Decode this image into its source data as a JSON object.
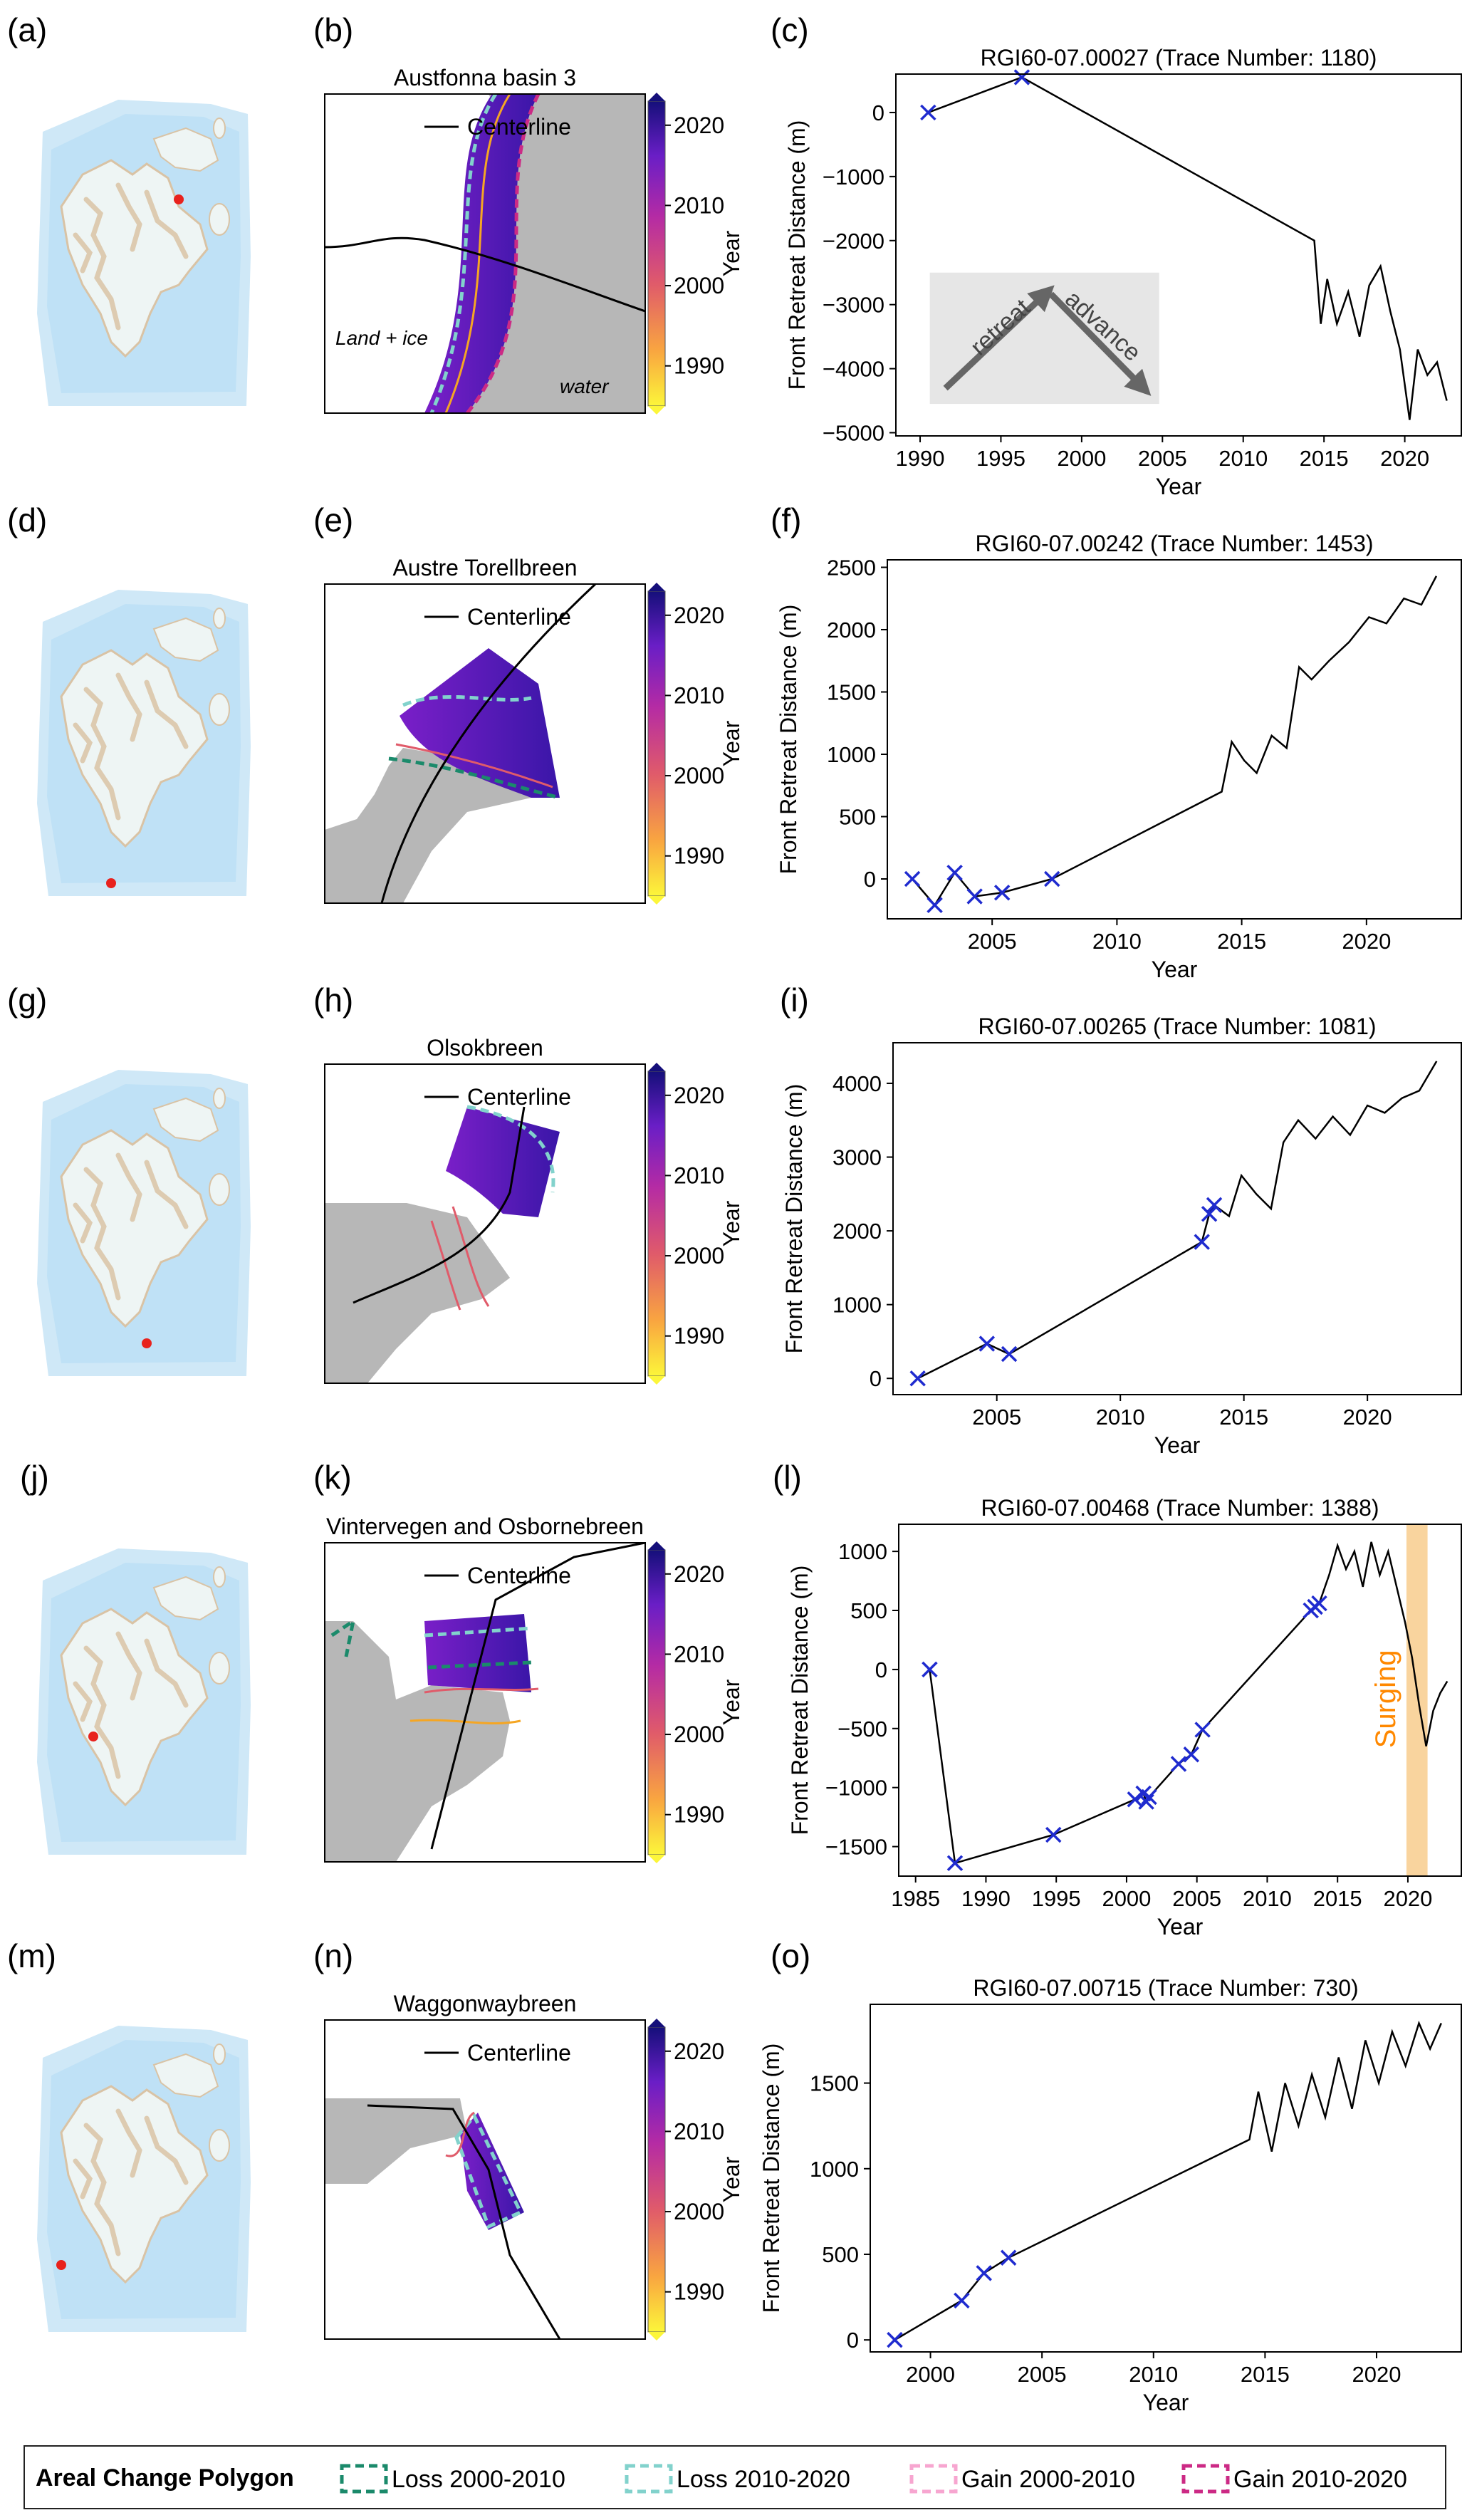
{
  "colors": {
    "ocean": "#cfe8f7",
    "ocean_outline": "#b8dcf2",
    "land_ice": "#eef5f4",
    "land_rock": "#d9c3a5",
    "marker": "#e8221d",
    "land_mask": "#b7b7b7",
    "cross": "#1f2bcf",
    "surge": "#f9d49e",
    "surge_text": "#ff8800",
    "loss_2000_2010": "#1b8a6b",
    "loss_2010_2020": "#82d2cc",
    "gain_2000_2010": "#f7a6d0",
    "gain_2010_2020": "#cc2a85"
  },
  "colorbar": {
    "label": "Year",
    "ticks": [
      "1990",
      "2000",
      "2010",
      "2020"
    ]
  },
  "legend": {
    "title": "Areal Change Polygon",
    "items": [
      "Loss 2000-2010",
      "Loss 2010-2020",
      "Gain 2000-2010",
      "Gain 2010-2020"
    ]
  },
  "rows": [
    {
      "labels": {
        "map": "(a)",
        "front": "(b)",
        "chart": "(c)"
      },
      "front_title": "Austfonna basin 3",
      "legend_line": "Centerline",
      "annotations": [
        "Land + ice",
        "water"
      ],
      "inset": {
        "left": "retreat",
        "right": "advance"
      }
    },
    {
      "labels": {
        "map": "(d)",
        "front": "(e)",
        "chart": "(f)"
      },
      "front_title": "Austre Torellbreen",
      "legend_line": "Centerline"
    },
    {
      "labels": {
        "map": "(g)",
        "front": "(h)",
        "chart": "(i)"
      },
      "front_title": "Olsokbreen",
      "legend_line": "Centerline"
    },
    {
      "labels": {
        "map": "(j)",
        "front": "(k)",
        "chart": "(l)"
      },
      "front_title": "Vintervegen and Osbornebreen",
      "legend_line": "Centerline",
      "surge_label": "Surging"
    },
    {
      "labels": {
        "map": "(m)",
        "front": "(n)",
        "chart": "(o)"
      },
      "front_title": "Waggonwaybreen",
      "legend_line": "Centerline"
    }
  ],
  "chart_data": [
    {
      "type": "line",
      "title": "RGI60-07.00027 (Trace Number: 1180)",
      "xlabel": "Year",
      "ylabel": "Front Retreat Distance (m)",
      "xlim": [
        1988.5,
        2023.5
      ],
      "ylim": [
        -5050,
        600
      ],
      "xticks": [
        1990,
        1995,
        2000,
        2005,
        2010,
        2015,
        2020
      ],
      "yticks": [
        0,
        -1000,
        -2000,
        -3000,
        -4000,
        -5000
      ],
      "markers": {
        "x": [
          1990.5,
          1996.3
        ],
        "y": [
          0,
          550
        ]
      },
      "line": {
        "x": [
          1990.5,
          1996.3,
          2014.4,
          2014.8,
          2015.2,
          2015.8,
          2016.5,
          2017.2,
          2017.8,
          2018.5,
          2019.1,
          2019.7,
          2020.3,
          2020.8,
          2021.4,
          2022.0,
          2022.6
        ],
        "y": [
          0,
          550,
          -2000,
          -3300,
          -2600,
          -3300,
          -2800,
          -3500,
          -2700,
          -2400,
          -3100,
          -3700,
          -4800,
          -3700,
          -4100,
          -3900,
          -4500
        ]
      }
    },
    {
      "type": "line",
      "title": "RGI60-07.00242 (Trace Number: 1453)",
      "xlabel": "Year",
      "ylabel": "Front Retreat Distance (m)",
      "xlim": [
        2000.8,
        2023.8
      ],
      "ylim": [
        -320,
        2560
      ],
      "xticks": [
        2005,
        2010,
        2015,
        2020
      ],
      "yticks": [
        0,
        500,
        1000,
        1500,
        2000,
        2500
      ],
      "markers": {
        "x": [
          2001.8,
          2002.7,
          2003.5,
          2004.3,
          2005.4,
          2007.4
        ],
        "y": [
          0,
          -210,
          50,
          -140,
          -110,
          0
        ]
      },
      "line": {
        "x": [
          2001.8,
          2002.7,
          2003.5,
          2004.3,
          2005.4,
          2007.4,
          2014.2,
          2014.6,
          2015.1,
          2015.6,
          2016.2,
          2016.8,
          2017.3,
          2017.8,
          2018.5,
          2019.3,
          2020.1,
          2020.8,
          2021.5,
          2022.2,
          2022.8
        ],
        "y": [
          0,
          -210,
          50,
          -140,
          -110,
          0,
          700,
          1100,
          950,
          850,
          1150,
          1050,
          1700,
          1600,
          1750,
          1900,
          2100,
          2050,
          2250,
          2200,
          2430
        ]
      }
    },
    {
      "type": "line",
      "title": "RGI60-07.00265 (Trace Number: 1081)",
      "xlabel": "Year",
      "ylabel": "Front Retreat Distance (m)",
      "xlim": [
        2000.8,
        2023.8
      ],
      "ylim": [
        -220,
        4550
      ],
      "xticks": [
        2005,
        2010,
        2015,
        2020
      ],
      "yticks": [
        0,
        1000,
        2000,
        3000,
        4000
      ],
      "markers": {
        "x": [
          2001.8,
          2004.6,
          2005.5,
          2013.3,
          2013.6,
          2013.8
        ],
        "y": [
          0,
          470,
          330,
          1850,
          2230,
          2350
        ]
      },
      "line": {
        "x": [
          2001.8,
          2004.6,
          2005.5,
          2013.3,
          2013.6,
          2013.8,
          2014.4,
          2014.9,
          2015.5,
          2016.1,
          2016.6,
          2017.2,
          2017.9,
          2018.6,
          2019.3,
          2020.0,
          2020.7,
          2021.4,
          2022.1,
          2022.8
        ],
        "y": [
          0,
          470,
          330,
          1850,
          2230,
          2350,
          2200,
          2750,
          2500,
          2300,
          3200,
          3500,
          3250,
          3550,
          3300,
          3700,
          3600,
          3800,
          3900,
          4300
        ]
      }
    },
    {
      "type": "line",
      "title": "RGI60-07.00468 (Trace Number: 1388)",
      "xlabel": "Year",
      "ylabel": "Front Retreat Distance (m)",
      "xlim": [
        1983.8,
        2023.8
      ],
      "ylim": [
        -1750,
        1230
      ],
      "xticks": [
        1985,
        1990,
        1995,
        2000,
        2005,
        2010,
        2015,
        2020
      ],
      "yticks": [
        1000,
        500,
        0,
        -500,
        -1000,
        -1500
      ],
      "surge_span": [
        2019.9,
        2021.4
      ],
      "markers": {
        "x": [
          1986.0,
          1987.8,
          1994.8,
          2000.6,
          2001.2,
          2001.4,
          2001.6,
          2003.7,
          2004.6,
          2005.4,
          2013.1,
          2013.4,
          2013.7
        ],
        "y": [
          0,
          -1640,
          -1400,
          -1100,
          -1050,
          -1120,
          -1080,
          -800,
          -720,
          -510,
          500,
          530,
          560
        ]
      },
      "line": {
        "x": [
          1986.0,
          1987.8,
          1994.8,
          2000.6,
          2001.2,
          2001.4,
          2001.6,
          2003.7,
          2004.6,
          2005.4,
          2013.1,
          2013.4,
          2013.7,
          2014.4,
          2015.0,
          2015.6,
          2016.2,
          2016.8,
          2017.4,
          2018.0,
          2018.6,
          2019.2,
          2019.8,
          2020.3,
          2020.8,
          2021.3,
          2021.8,
          2022.3,
          2022.8
        ],
        "y": [
          0,
          -1640,
          -1400,
          -1100,
          -1050,
          -1120,
          -1080,
          -800,
          -720,
          -510,
          500,
          530,
          560,
          800,
          1050,
          850,
          1000,
          700,
          1080,
          800,
          1000,
          700,
          400,
          100,
          -300,
          -650,
          -350,
          -200,
          -100
        ]
      }
    },
    {
      "type": "line",
      "title": "RGI60-07.00715 (Trace Number: 730)",
      "xlabel": "Year",
      "ylabel": "Front Retreat Distance (m)",
      "xlim": [
        1997.3,
        2023.8
      ],
      "ylim": [
        -70,
        1960
      ],
      "xticks": [
        2000,
        2005,
        2010,
        2015,
        2020
      ],
      "yticks": [
        0,
        500,
        1000,
        1500
      ],
      "markers": {
        "x": [
          1998.4,
          2001.4,
          2002.4,
          2003.5
        ],
        "y": [
          0,
          230,
          390,
          480
        ]
      },
      "line": {
        "x": [
          1998.4,
          2001.4,
          2002.4,
          2003.5,
          2014.3,
          2014.7,
          2015.3,
          2015.9,
          2016.5,
          2017.1,
          2017.7,
          2018.3,
          2018.9,
          2019.5,
          2020.1,
          2020.7,
          2021.3,
          2021.9,
          2022.4,
          2022.9
        ],
        "y": [
          0,
          230,
          390,
          480,
          1170,
          1450,
          1100,
          1500,
          1250,
          1550,
          1300,
          1650,
          1350,
          1750,
          1500,
          1800,
          1600,
          1850,
          1700,
          1850
        ]
      }
    }
  ]
}
